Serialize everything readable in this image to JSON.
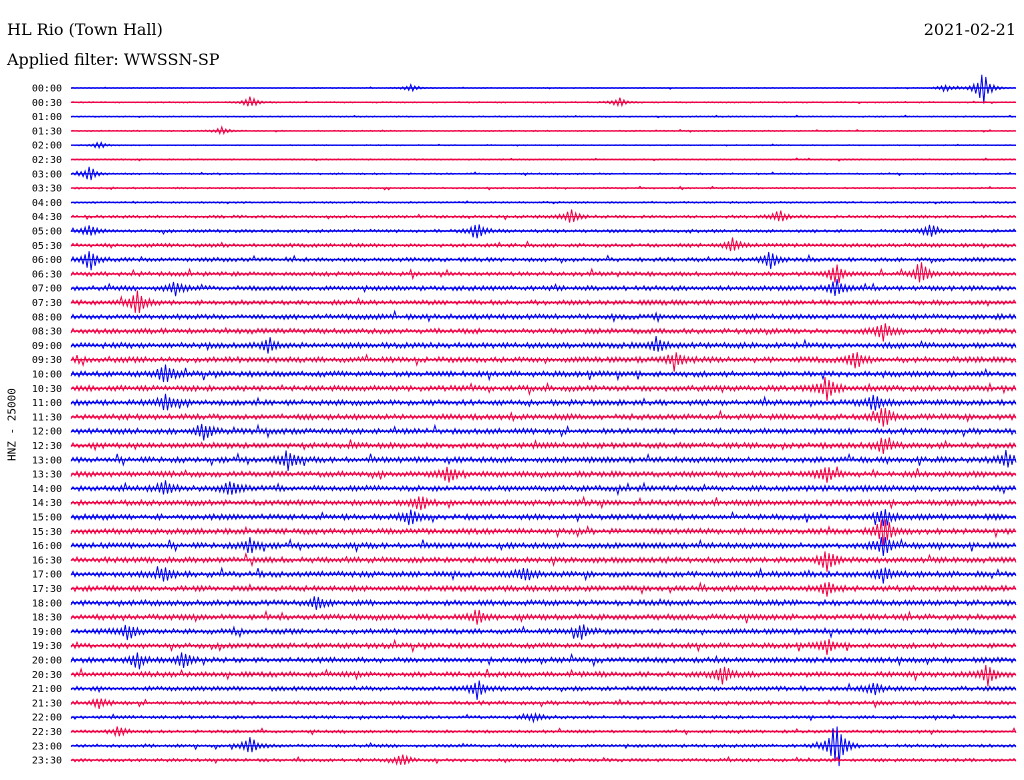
{
  "header": {
    "station": "HL Rio (Town Hall)",
    "filter": "Applied filter: WWSSN-SP",
    "date": "2021-02-21"
  },
  "chart_data": {
    "type": "line",
    "title": "HL Rio (Town Hall)",
    "subtitle": "Applied filter: WWSSN-SP",
    "ylabel": "HNZ - 25000",
    "xlabel": "",
    "grid": false,
    "legend": "none",
    "colors": [
      "#0000ee",
      "#ee0044"
    ],
    "rows": [
      "00:00",
      "00:30",
      "01:00",
      "01:30",
      "02:00",
      "02:30",
      "03:00",
      "03:30",
      "04:00",
      "04:30",
      "05:00",
      "05:30",
      "06:00",
      "06:30",
      "07:00",
      "07:30",
      "08:00",
      "08:30",
      "09:00",
      "09:30",
      "10:00",
      "10:30",
      "11:00",
      "11:30",
      "12:00",
      "12:30",
      "13:00",
      "13:30",
      "14:00",
      "14:30",
      "15:00",
      "15:30",
      "16:00",
      "16:30",
      "17:00",
      "17:30",
      "18:00",
      "18:30",
      "19:00",
      "19:30",
      "20:00",
      "20:30",
      "21:00",
      "21:30",
      "22:00",
      "22:30",
      "23:00",
      "23:30"
    ],
    "noise_level": [
      0.5,
      0.6,
      0.6,
      0.6,
      0.5,
      0.7,
      0.8,
      0.8,
      0.9,
      1.4,
      1.6,
      1.9,
      2.0,
      2.2,
      2.4,
      2.4,
      2.6,
      2.6,
      2.8,
      2.8,
      2.8,
      2.8,
      2.8,
      2.8,
      2.8,
      2.8,
      2.8,
      2.8,
      2.8,
      2.8,
      2.8,
      2.8,
      2.8,
      2.8,
      2.8,
      2.8,
      2.8,
      2.8,
      2.6,
      2.6,
      2.6,
      2.6,
      2.2,
      2.0,
      1.6,
      1.5,
      1.6,
      1.6
    ],
    "events": [
      {
        "row": 0,
        "t": 0.965,
        "amp": 18
      },
      {
        "row": 0,
        "t": 0.925,
        "amp": 4
      },
      {
        "row": 0,
        "t": 0.36,
        "amp": 4
      },
      {
        "row": 1,
        "t": 0.19,
        "amp": 6
      },
      {
        "row": 1,
        "t": 0.58,
        "amp": 5
      },
      {
        "row": 3,
        "t": 0.16,
        "amp": 4
      },
      {
        "row": 4,
        "t": 0.03,
        "amp": 4
      },
      {
        "row": 6,
        "t": 0.02,
        "amp": 8
      },
      {
        "row": 9,
        "t": 0.53,
        "amp": 9
      },
      {
        "row": 9,
        "t": 0.75,
        "amp": 7
      },
      {
        "row": 10,
        "t": 0.02,
        "amp": 7
      },
      {
        "row": 10,
        "t": 0.43,
        "amp": 9
      },
      {
        "row": 10,
        "t": 0.91,
        "amp": 7
      },
      {
        "row": 11,
        "t": 0.7,
        "amp": 8
      },
      {
        "row": 12,
        "t": 0.02,
        "amp": 11
      },
      {
        "row": 12,
        "t": 0.74,
        "amp": 9
      },
      {
        "row": 13,
        "t": 0.81,
        "amp": 11
      },
      {
        "row": 13,
        "t": 0.9,
        "amp": 11
      },
      {
        "row": 14,
        "t": 0.81,
        "amp": 9
      },
      {
        "row": 14,
        "t": 0.11,
        "amp": 7
      },
      {
        "row": 15,
        "t": 0.07,
        "amp": 14
      },
      {
        "row": 17,
        "t": 0.86,
        "amp": 10
      },
      {
        "row": 18,
        "t": 0.21,
        "amp": 7
      },
      {
        "row": 18,
        "t": 0.62,
        "amp": 8
      },
      {
        "row": 19,
        "t": 0.64,
        "amp": 8
      },
      {
        "row": 19,
        "t": 0.83,
        "amp": 9
      },
      {
        "row": 20,
        "t": 0.1,
        "amp": 10
      },
      {
        "row": 21,
        "t": 0.8,
        "amp": 14
      },
      {
        "row": 22,
        "t": 0.1,
        "amp": 8
      },
      {
        "row": 22,
        "t": 0.85,
        "amp": 10
      },
      {
        "row": 23,
        "t": 0.86,
        "amp": 13
      },
      {
        "row": 24,
        "t": 0.14,
        "amp": 9
      },
      {
        "row": 25,
        "t": 0.86,
        "amp": 9
      },
      {
        "row": 26,
        "t": 0.23,
        "amp": 11
      },
      {
        "row": 26,
        "t": 0.99,
        "amp": 9
      },
      {
        "row": 27,
        "t": 0.8,
        "amp": 9
      },
      {
        "row": 27,
        "t": 0.4,
        "amp": 8
      },
      {
        "row": 28,
        "t": 0.1,
        "amp": 8
      },
      {
        "row": 28,
        "t": 0.17,
        "amp": 8
      },
      {
        "row": 29,
        "t": 0.37,
        "amp": 8
      },
      {
        "row": 30,
        "t": 0.36,
        "amp": 9
      },
      {
        "row": 30,
        "t": 0.86,
        "amp": 10
      },
      {
        "row": 31,
        "t": 0.86,
        "amp": 18
      },
      {
        "row": 32,
        "t": 0.19,
        "amp": 8
      },
      {
        "row": 32,
        "t": 0.86,
        "amp": 12
      },
      {
        "row": 33,
        "t": 0.8,
        "amp": 11
      },
      {
        "row": 34,
        "t": 0.1,
        "amp": 8
      },
      {
        "row": 34,
        "t": 0.48,
        "amp": 8
      },
      {
        "row": 34,
        "t": 0.86,
        "amp": 8
      },
      {
        "row": 35,
        "t": 0.8,
        "amp": 7
      },
      {
        "row": 36,
        "t": 0.26,
        "amp": 7
      },
      {
        "row": 37,
        "t": 0.43,
        "amp": 8
      },
      {
        "row": 38,
        "t": 0.06,
        "amp": 8
      },
      {
        "row": 38,
        "t": 0.54,
        "amp": 8
      },
      {
        "row": 39,
        "t": 0.8,
        "amp": 7
      },
      {
        "row": 40,
        "t": 0.07,
        "amp": 8
      },
      {
        "row": 40,
        "t": 0.12,
        "amp": 9
      },
      {
        "row": 41,
        "t": 0.69,
        "amp": 10
      },
      {
        "row": 41,
        "t": 0.97,
        "amp": 10
      },
      {
        "row": 42,
        "t": 0.43,
        "amp": 10
      },
      {
        "row": 42,
        "t": 0.85,
        "amp": 6
      },
      {
        "row": 43,
        "t": 0.03,
        "amp": 5
      },
      {
        "row": 44,
        "t": 0.49,
        "amp": 5
      },
      {
        "row": 45,
        "t": 0.05,
        "amp": 5
      },
      {
        "row": 46,
        "t": 0.19,
        "amp": 9
      },
      {
        "row": 46,
        "t": 0.81,
        "amp": 30
      },
      {
        "row": 47,
        "t": 0.35,
        "amp": 6
      }
    ]
  }
}
